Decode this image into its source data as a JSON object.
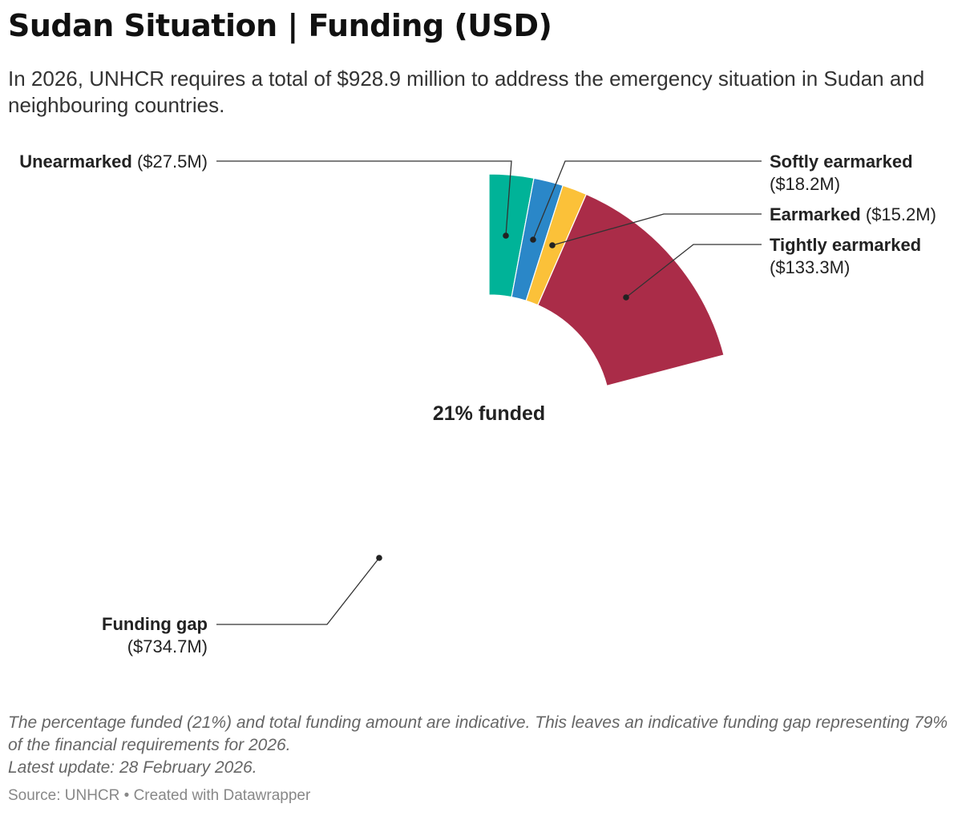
{
  "header": {
    "title": "Sudan Situation | Funding (USD)",
    "subtitle": "In 2026, UNHCR requires a total of $928.9 million to address the emergency situation in Sudan and neighbouring countries."
  },
  "chart_data": {
    "type": "pie",
    "unit": "USD million",
    "total": 928.9,
    "center_label": "21% funded",
    "slices": [
      {
        "name": "Unearmarked",
        "value": 27.5,
        "value_label": "($27.5M)",
        "color": "#00b398"
      },
      {
        "name": "Softly earmarked",
        "value": 18.2,
        "value_label": "($18.2M)",
        "color": "#2a87c8"
      },
      {
        "name": "Earmarked",
        "value": 15.2,
        "value_label": "($15.2M)",
        "color": "#fbc139"
      },
      {
        "name": "Tightly earmarked",
        "value": 133.3,
        "value_label": "($133.3M)",
        "color": "#aa2c48"
      },
      {
        "name": "Funding gap",
        "value": 734.7,
        "value_label": "($734.7M)",
        "color": "#ffffff"
      }
    ]
  },
  "footer": {
    "note": "The percentage funded (21%) and total funding amount are indicative. This leaves an indicative funding gap representing 79% of the financial requirements for 2026.",
    "update": "Latest update: 28 February 2026.",
    "source": "Source: UNHCR • Created with Datawrapper"
  }
}
